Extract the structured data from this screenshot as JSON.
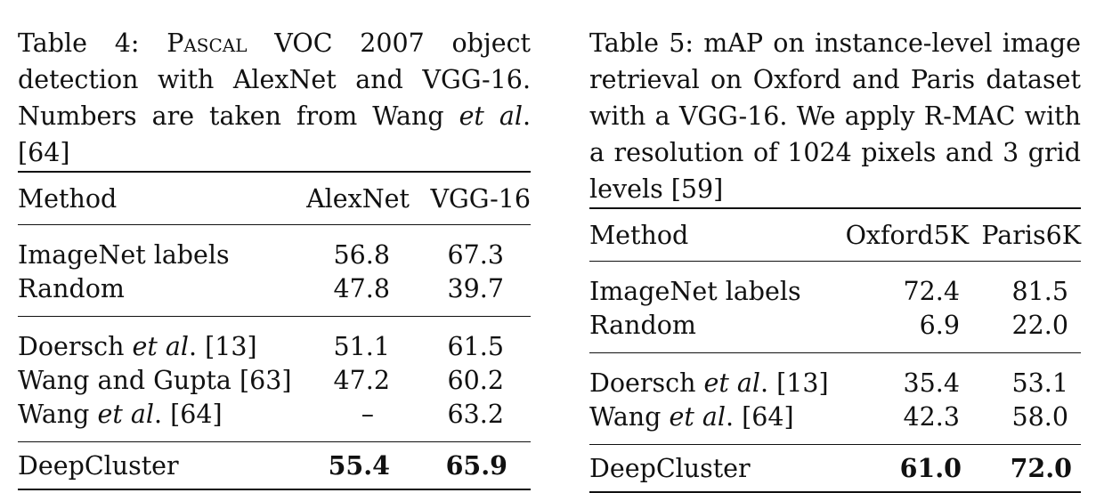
{
  "table4": {
    "caption": {
      "prefix": "Table 4: ",
      "smallcaps": "Pascal",
      "text1": " VOC 2007 object detection with AlexNet and VGG-16. Numbers are taken from Wang ",
      "italic": "et al",
      "text2": ". [64]"
    },
    "headers": [
      "Method",
      "AlexNet",
      "VGG-16"
    ],
    "groups": [
      [
        {
          "method": "ImageNet labels",
          "a": "56.8",
          "b": "67.3"
        },
        {
          "method": "Random",
          "a": "47.8",
          "b": "39.7"
        }
      ],
      [
        {
          "method_pre": "Doersch ",
          "method_it": "et al",
          "method_post": ". [13]",
          "a": "51.1",
          "b": "61.5"
        },
        {
          "method": "Wang and Gupta [63]",
          "a": "47.2",
          "b": "60.2"
        },
        {
          "method_pre": "Wang ",
          "method_it": "et al",
          "method_post": ". [64]",
          "a": "–",
          "b": "63.2"
        }
      ],
      [
        {
          "method": "DeepCluster",
          "a": "55.4",
          "b": "65.9"
        }
      ]
    ]
  },
  "table5": {
    "caption": "Table 5: mAP on instance-level image retrieval on Oxford and Paris dataset with a VGG-16. We apply R-MAC with a resolution of 1024 pixels and 3 grid levels [59]",
    "headers": [
      "Method",
      "Oxford5K",
      "Paris6K"
    ],
    "groups": [
      [
        {
          "method": "ImageNet labels",
          "a": "72.4",
          "b": "81.5"
        },
        {
          "method": "Random",
          "a": "6.9",
          "b": "22.0"
        }
      ],
      [
        {
          "method_pre": "Doersch ",
          "method_it": "et al",
          "method_post": ". [13]",
          "a": "35.4",
          "b": "53.1"
        },
        {
          "method_pre": "Wang ",
          "method_it": "et al",
          "method_post": ". [64]",
          "a": "42.3",
          "b": "58.0"
        }
      ],
      [
        {
          "method": "DeepCluster",
          "a": "61.0",
          "b": "72.0"
        }
      ]
    ]
  }
}
